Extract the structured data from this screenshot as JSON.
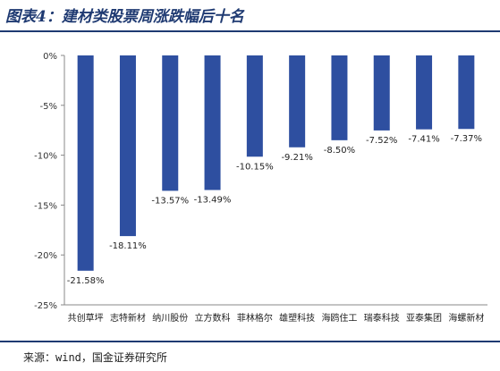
{
  "header": {
    "title": "图表4：建材类股票周涨跌幅后十名"
  },
  "footer": {
    "source": "来源：wind，国金证券研究所"
  },
  "chart_data": {
    "type": "bar",
    "title": "",
    "xlabel": "",
    "ylabel": "",
    "categories": [
      "共创草坪",
      "志特新材",
      "纳川股份",
      "立方数科",
      "菲林格尔",
      "雄塑科技",
      "海鸥住工",
      "瑞泰科技",
      "亚泰集团",
      "海螺新材"
    ],
    "values": [
      -21.58,
      -18.11,
      -13.57,
      -13.49,
      -10.15,
      -9.21,
      -8.5,
      -7.52,
      -7.41,
      -7.37
    ],
    "data_labels": [
      "-21.58%",
      "-18.11%",
      "-13.57%",
      "-13.49%",
      "-10.15%",
      "-9.21%",
      "-8.50%",
      "-7.52%",
      "-7.41%",
      "-7.37%"
    ],
    "ylim": [
      -25,
      0
    ],
    "yticks": [
      0,
      -5,
      -10,
      -15,
      -20,
      -25
    ],
    "ytick_labels": [
      "0%",
      "-5%",
      "-10%",
      "-15%",
      "-20%",
      "-25%"
    ],
    "grid": false,
    "legend": "none",
    "bar_color": "#2e4fa0"
  }
}
